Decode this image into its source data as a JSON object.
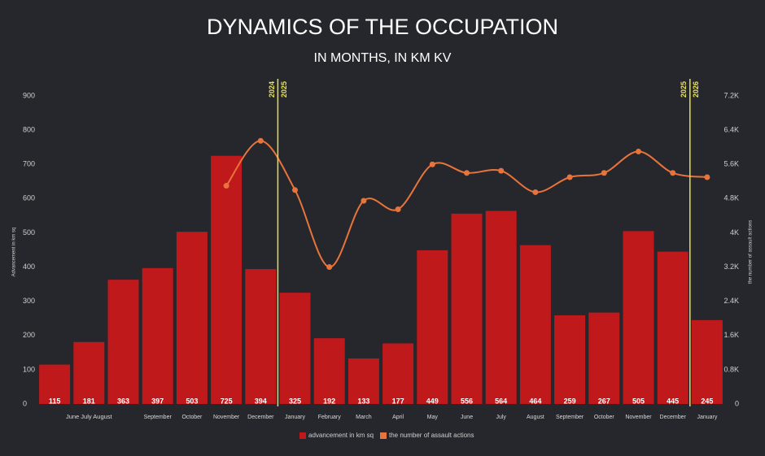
{
  "chart_data": {
    "type": "bar",
    "title": "DYNAMICS OF THE OCCUPATION",
    "subtitle": "IN MONTHS, IN KM KV",
    "y_axis_label": "Advancement in km sq",
    "y2_axis_label": "the number of assault actions",
    "categories": [
      null,
      "June July August",
      null,
      "September",
      "October",
      "November",
      "December",
      "January",
      "February",
      "March",
      "April",
      "May",
      "June",
      "July",
      "August",
      "September",
      "October",
      "November",
      "December",
      "January"
    ],
    "series": [
      {
        "name": "advancement in km sq",
        "type": "bar",
        "color": "#c0191c",
        "values": [
          115,
          181,
          363,
          397,
          503,
          725,
          394,
          325,
          192,
          133,
          177,
          449,
          556,
          564,
          464,
          259,
          267,
          505,
          445,
          245
        ]
      },
      {
        "name": "the number of assault actions",
        "type": "line",
        "axis": "y2",
        "color": "#e8743b",
        "values": [
          null,
          null,
          null,
          null,
          null,
          5100,
          6150,
          5000,
          3200,
          4750,
          4550,
          5600,
          5400,
          5450,
          4950,
          5300,
          5400,
          5900,
          5400,
          5300
        ]
      }
    ],
    "year_markers": [
      [
        "2024",
        "2025"
      ],
      [
        "2025",
        "2026"
      ]
    ],
    "ylim": [
      0,
      900
    ],
    "yticks": [
      0,
      100,
      200,
      300,
      400,
      500,
      600,
      700,
      800,
      900
    ],
    "y2lim": [
      0,
      7200
    ],
    "y2ticks": [
      0,
      {
        "value": 800,
        "label": "0.8K"
      },
      {
        "value": 1600,
        "label": "1.6K"
      },
      {
        "value": 2400,
        "label": "2.4K"
      },
      {
        "value": 3200,
        "label": "3.2K"
      },
      {
        "value": 4000,
        "label": "4K"
      },
      {
        "value": 4800,
        "label": "4.8K"
      },
      {
        "value": 5600,
        "label": "5.6K"
      },
      {
        "value": 6400,
        "label": "6.4K"
      },
      {
        "value": 7200,
        "label": "7.2K"
      }
    ]
  }
}
